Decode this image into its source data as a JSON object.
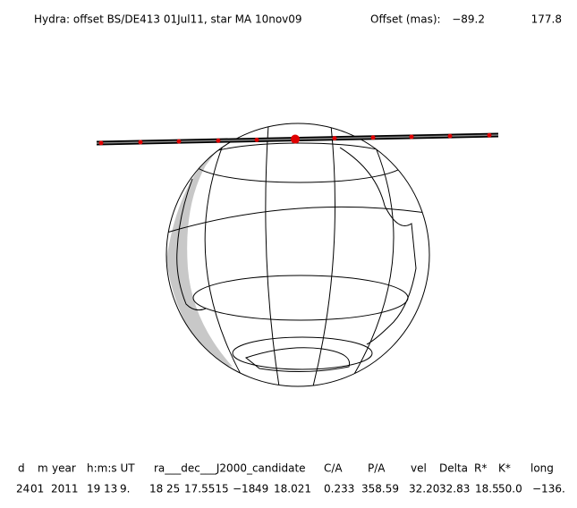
{
  "header": {
    "title": "Hydra: offset BS/DE413 01Jul11, star MA 10nov09",
    "offset_label": "Offset (mas):",
    "offset_values": [
      "−89.2",
      "177.8"
    ]
  },
  "table": {
    "columns": [
      "d",
      "m",
      "year",
      "h:m:s UT",
      "ra___dec___J2000_candidate",
      "C/A",
      "P/A",
      "vel",
      "Delta",
      "R*",
      "K*",
      "long"
    ],
    "row": [
      "24",
      "01",
      "2011",
      "19",
      "13",
      "9.",
      "18",
      "25",
      "17.5515",
      "−18",
      "49",
      "18.021",
      "0.233",
      "358.59",
      "32.20",
      "32.83",
      "18.5",
      "50.0",
      "−136."
    ]
  }
}
